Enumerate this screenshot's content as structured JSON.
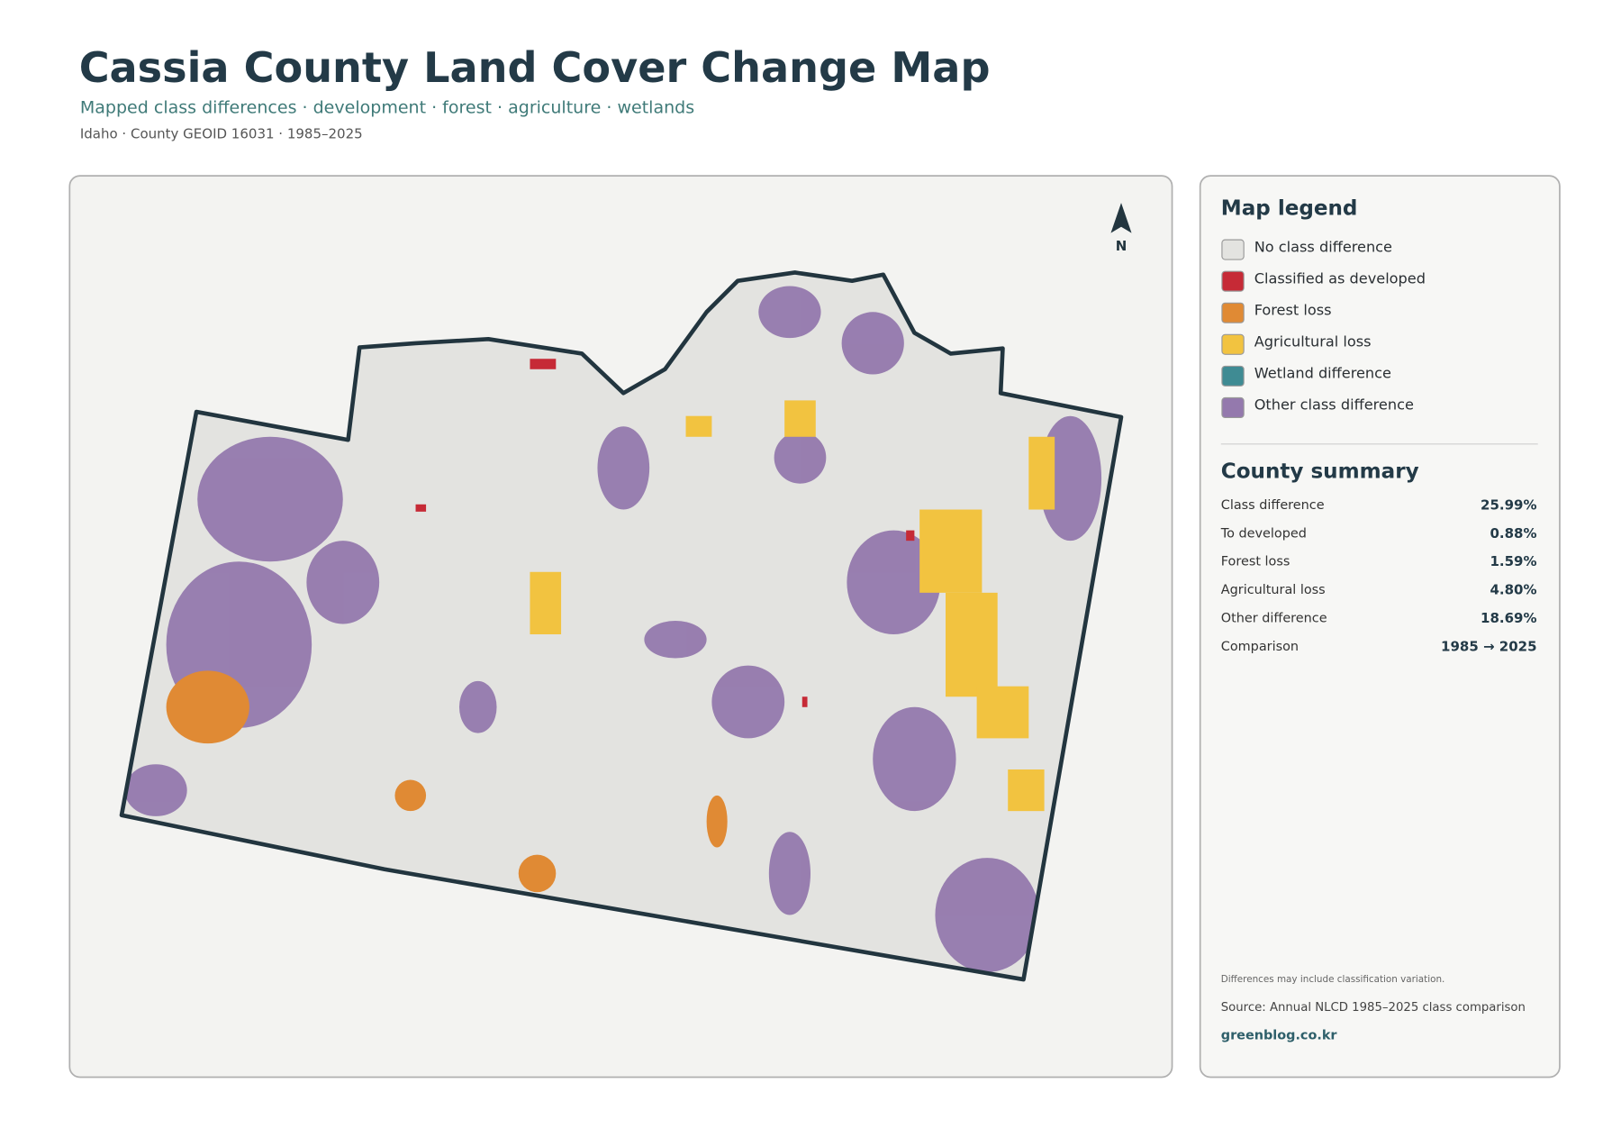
{
  "header": {
    "title": "Cassia County Land Cover Change Map",
    "subtitle": "Mapped class differences · development · forest · agriculture · wetlands",
    "meta": "Idaho · County GEOID 16031 · 1985–2025"
  },
  "map": {
    "north_label": "N"
  },
  "legend": {
    "title": "Map legend",
    "items": [
      {
        "label": "No class difference",
        "color": "#e3e3e0"
      },
      {
        "label": "Classified as developed",
        "color": "#c62a36"
      },
      {
        "label": "Forest loss",
        "color": "#e08a34"
      },
      {
        "label": "Agricultural loss",
        "color": "#f2c340"
      },
      {
        "label": "Wetland difference",
        "color": "#3f8b93"
      },
      {
        "label": "Other class difference",
        "color": "#9479ad"
      }
    ]
  },
  "summary": {
    "title": "County summary",
    "rows": [
      {
        "label": "Class difference",
        "value": "25.99%"
      },
      {
        "label": "To developed",
        "value": "0.88%"
      },
      {
        "label": "Forest loss",
        "value": "1.59%"
      },
      {
        "label": "Agricultural loss",
        "value": "4.80%"
      },
      {
        "label": "Other difference",
        "value": "18.69%"
      },
      {
        "label": "Comparison",
        "value": "1985 → 2025"
      }
    ]
  },
  "footer": {
    "note": "Differences may include classification variation.",
    "source": "Source: Annual NLCD 1985–2025 class comparison",
    "site": "greenblog.co.kr"
  }
}
